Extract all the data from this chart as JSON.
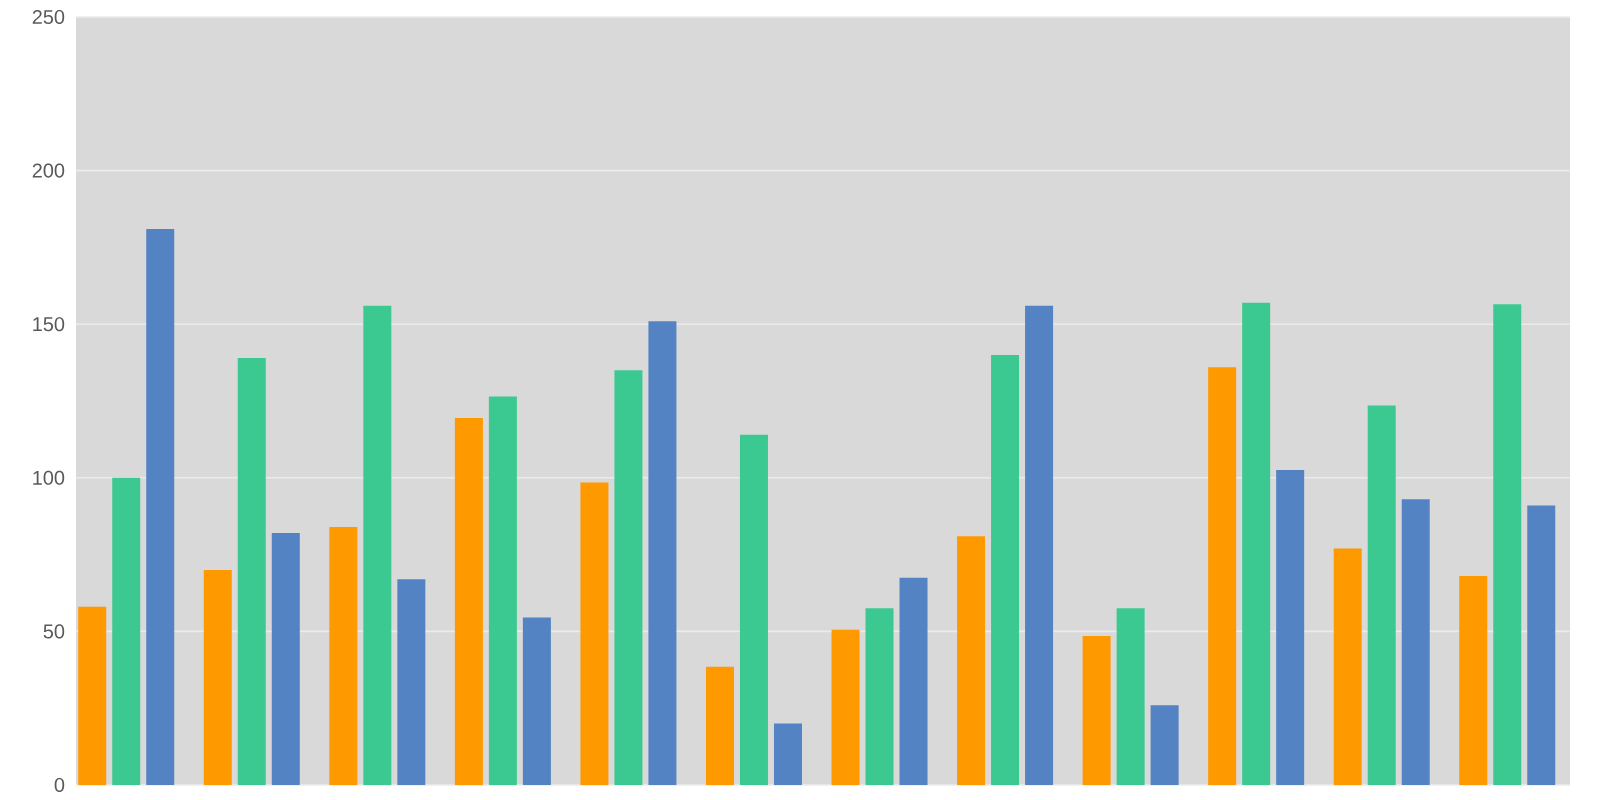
{
  "chart_data": {
    "type": "bar",
    "categories": [
      null,
      null,
      null,
      null,
      null,
      null,
      null,
      null,
      null,
      null,
      null,
      null
    ],
    "series": [
      {
        "color": "#ff9900",
        "values": [
          58,
          70,
          84,
          119.5,
          98.5,
          38.5,
          50.5,
          81,
          48.5,
          136,
          77,
          68
        ]
      },
      {
        "color": "#3cc991",
        "values": [
          100,
          139,
          156,
          126.5,
          135,
          114,
          57.5,
          140,
          57.5,
          157,
          123.5,
          156.5
        ]
      },
      {
        "color": "#5383c3",
        "values": [
          181,
          82,
          67,
          54.5,
          151,
          20,
          67.5,
          156,
          26,
          102.5,
          93,
          91
        ]
      }
    ],
    "ylim": [
      0,
      250
    ],
    "yticks": [
      0,
      50,
      100,
      150,
      200,
      250
    ],
    "grid": "y"
  }
}
